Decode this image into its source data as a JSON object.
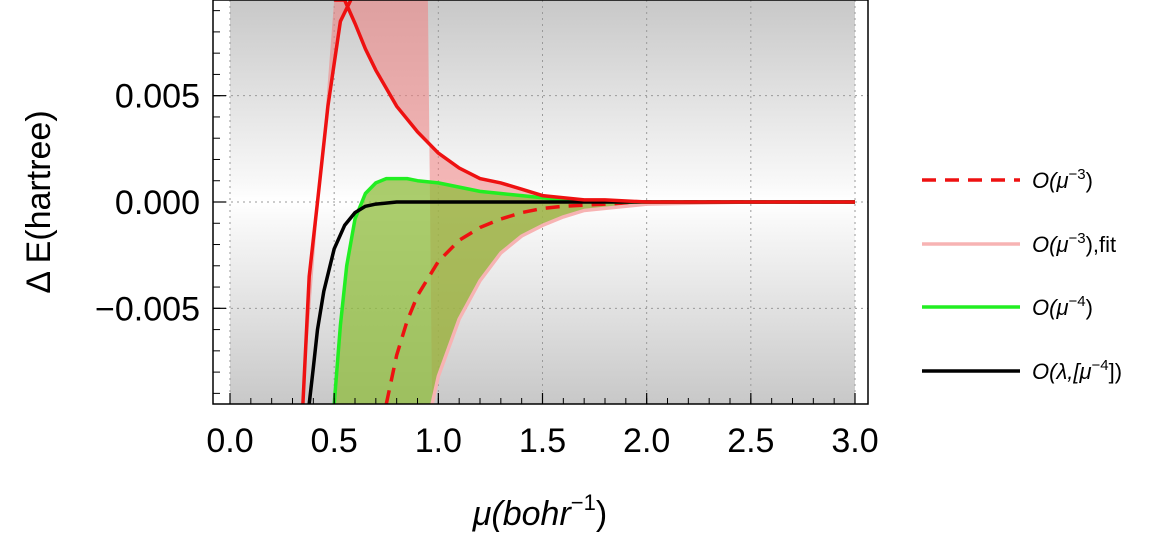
{
  "chart_data": {
    "type": "line",
    "xlabel": "μ(bohr",
    "xlabel_sup": "−1",
    "xlabel_close": ")",
    "ylabel": "Δ E(hartree)",
    "xlim": [
      0.0,
      3.0
    ],
    "ylim": [
      -0.0095,
      0.0095
    ],
    "x_ticks": [
      0.0,
      0.5,
      1.0,
      1.5,
      2.0,
      2.5,
      3.0
    ],
    "x_tick_labels": [
      "0.0",
      "0.5",
      "1.0",
      "1.5",
      "2.0",
      "2.5",
      "3.0"
    ],
    "y_ticks": [
      -0.005,
      0.0,
      0.005
    ],
    "y_tick_labels": [
      "−0.005",
      "0.000",
      "0.005"
    ],
    "grid": true,
    "legend_position": "right",
    "colors": {
      "red": "#ee1111",
      "pink": "#f7b3b3",
      "green": "#22ee22",
      "black": "#000000",
      "red_band": "#f08080",
      "green_band": "#8fbc3c"
    },
    "series": [
      {
        "name": "O(μ−3)",
        "base": "O(μ",
        "sup": "−3",
        "tail": ")",
        "color": "#ee1111",
        "dash": true,
        "x": [
          0.75,
          0.8,
          0.85,
          0.9,
          1.0,
          1.1,
          1.2,
          1.3,
          1.4,
          1.5,
          1.6,
          1.8,
          2.0,
          2.5,
          3.0
        ],
        "y": [
          -0.0095,
          -0.0072,
          -0.0056,
          -0.0044,
          -0.0028,
          -0.0018,
          -0.0012,
          -0.0008,
          -0.0005,
          -0.0003,
          -0.0002,
          -0.0001,
          0.0,
          0.0,
          0.0
        ]
      },
      {
        "name": "O(μ−3),fit",
        "base": "O(μ",
        "sup": "−3",
        "tail": "),fit",
        "color": "#f7b3b3",
        "dash": false,
        "x": [
          0.97,
          1.0,
          1.1,
          1.2,
          1.3,
          1.4,
          1.5,
          1.6,
          1.7,
          1.8,
          2.0,
          2.5,
          3.0
        ],
        "y": [
          -0.0095,
          -0.0082,
          -0.0055,
          -0.0037,
          -0.0024,
          -0.0016,
          -0.0011,
          -0.0007,
          -0.0004,
          -0.0003,
          -0.0001,
          0.0,
          0.0
        ]
      },
      {
        "name": "O(μ−4)",
        "base": "O(μ",
        "sup": "−4",
        "tail": ")",
        "color": "#22ee22",
        "dash": false,
        "x": [
          0.5,
          0.53,
          0.56,
          0.6,
          0.65,
          0.7,
          0.75,
          0.8,
          0.85,
          0.9,
          1.0,
          1.1,
          1.2,
          1.3,
          1.4,
          1.5,
          1.6,
          1.8,
          2.0,
          2.5,
          3.0
        ],
        "y": [
          -0.0095,
          -0.0058,
          -0.003,
          -0.0008,
          0.0004,
          0.0009,
          0.0011,
          0.0011,
          0.0011,
          0.001,
          0.0009,
          0.0007,
          0.0005,
          0.0004,
          0.0003,
          0.0002,
          0.0001,
          0.0,
          0.0,
          0.0,
          0.0
        ]
      },
      {
        "name": "O(λ,[μ−4])",
        "base": "O(λ,[μ",
        "sup": "−4",
        "tail": "])",
        "color": "#000000",
        "dash": false,
        "x": [
          0.38,
          0.4,
          0.42,
          0.45,
          0.5,
          0.55,
          0.6,
          0.65,
          0.7,
          0.8,
          0.9,
          1.0,
          1.2,
          1.5,
          2.0,
          2.5,
          3.0
        ],
        "y": [
          -0.0095,
          -0.0078,
          -0.006,
          -0.0042,
          -0.0022,
          -0.0011,
          -0.0005,
          -0.0002,
          -0.0001,
          0.0,
          0.0,
          0.0,
          0.0,
          0.0,
          0.0,
          0.0,
          0.0
        ]
      }
    ],
    "bands": [
      {
        "color": "#f08080",
        "upper_x": [
          0.5,
          0.55,
          0.6,
          0.65,
          0.7,
          0.8,
          0.9,
          1.0,
          1.1,
          1.2,
          1.3,
          1.4,
          1.5,
          1.6,
          1.7,
          1.8,
          2.0,
          2.5,
          3.0
        ],
        "upper_y": [
          0.0095,
          0.0095,
          0.0084,
          0.0072,
          0.0062,
          0.0045,
          0.0033,
          0.0023,
          0.0016,
          0.0011,
          0.0009,
          0.0006,
          0.0003,
          0.0002,
          0.0001,
          0.0001,
          0.0,
          0.0,
          0.0
        ],
        "lower_x": [
          0.35,
          0.38,
          0.42,
          0.47,
          0.53,
          0.58,
          0.62,
          0.7,
          0.75,
          0.8,
          0.85,
          0.9,
          0.95,
          0.97,
          1.0,
          1.1,
          1.2,
          1.3,
          1.4,
          1.5,
          1.6,
          1.7,
          1.8,
          2.0,
          2.5,
          3.0
        ],
        "lower_y": [
          -0.0095,
          -0.0035,
          0.0,
          0.0045,
          0.0085,
          0.0095,
          0.0095,
          0.0095,
          0.0095,
          0.0095,
          0.0095,
          0.0095,
          0.0095,
          -0.0095,
          -0.0082,
          -0.0055,
          -0.0037,
          -0.0024,
          -0.0016,
          -0.0011,
          -0.0007,
          -0.0004,
          -0.0003,
          -0.0001,
          0.0,
          0.0
        ]
      },
      {
        "color": "#8fbc3c",
        "upper_x": [
          0.5,
          0.53,
          0.56,
          0.6,
          0.65,
          0.7,
          0.75,
          0.8,
          0.85,
          0.9,
          1.0,
          1.1,
          1.2,
          1.3,
          1.4,
          1.5,
          1.6,
          1.8,
          2.0,
          2.5,
          3.0
        ],
        "upper_y": [
          -0.0095,
          -0.0058,
          -0.003,
          -0.0008,
          0.0004,
          0.0009,
          0.0011,
          0.0011,
          0.0011,
          0.001,
          0.0009,
          0.0007,
          0.0005,
          0.0004,
          0.0003,
          0.0002,
          0.0001,
          0.0,
          0.0,
          0.0,
          0.0
        ],
        "lower_x": [
          0.5,
          0.97,
          1.0,
          1.1,
          1.2,
          1.3,
          1.4,
          1.5,
          1.6,
          1.7,
          1.8,
          2.0,
          2.5,
          3.0
        ],
        "lower_y": [
          -0.0095,
          -0.0095,
          -0.0082,
          -0.0055,
          -0.0037,
          -0.0024,
          -0.0016,
          -0.0011,
          -0.0007,
          -0.0004,
          -0.0003,
          -0.0001,
          0.0,
          0.0
        ]
      }
    ]
  }
}
